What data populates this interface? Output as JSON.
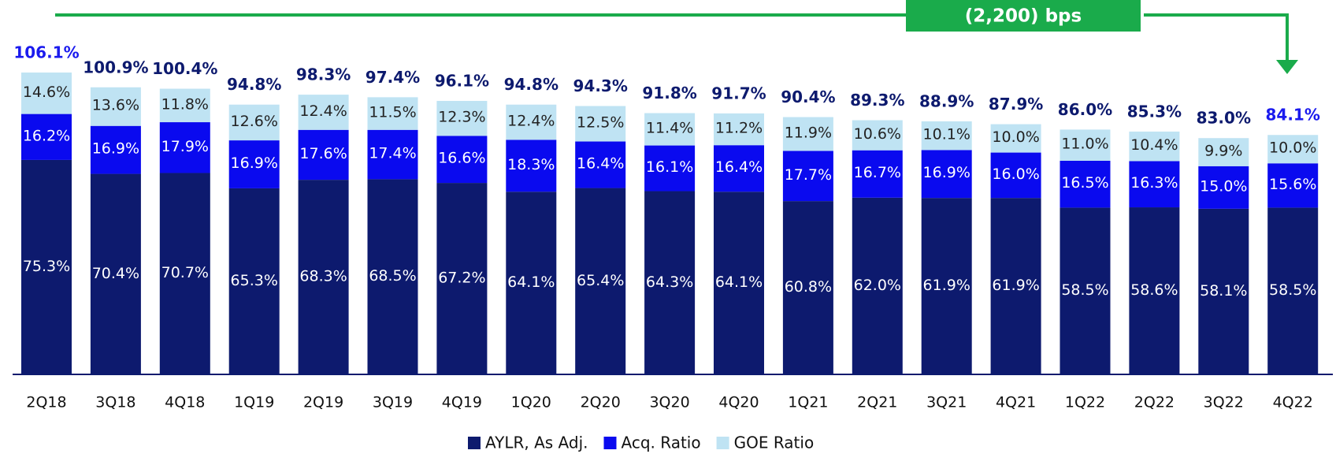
{
  "chart_data": {
    "type": "stacked-bar",
    "annotation": "(2,200) bps",
    "categories": [
      "2Q18",
      "3Q18",
      "4Q18",
      "1Q19",
      "2Q19",
      "3Q19",
      "4Q19",
      "1Q20",
      "2Q20",
      "3Q20",
      "4Q20",
      "1Q21",
      "2Q21",
      "3Q21",
      "4Q21",
      "1Q22",
      "2Q22",
      "3Q22",
      "4Q22"
    ],
    "series": [
      {
        "name": "AYLR, As Adj.",
        "color": "#0d1a6e",
        "label_color": "#ffffff",
        "values": [
          75.3,
          70.4,
          70.7,
          65.3,
          68.3,
          68.5,
          67.2,
          64.1,
          65.4,
          64.3,
          64.1,
          60.8,
          62.0,
          61.9,
          61.9,
          58.5,
          58.6,
          58.1,
          58.5
        ],
        "value_labels": [
          "75.3%",
          "70.4%",
          "70.7%",
          "65.3%",
          "68.3%",
          "68.5%",
          "67.2%",
          "64.1%",
          "65.4%",
          "64.3%",
          "64.1%",
          "60.8%",
          "62.0%",
          "61.9%",
          "61.9%",
          "58.5%",
          "58.6%",
          "58.1%",
          "58.5%"
        ]
      },
      {
        "name": "Acq. Ratio",
        "color": "#0a0aef",
        "label_color": "#ffffff",
        "values": [
          16.2,
          16.9,
          17.9,
          16.9,
          17.6,
          17.4,
          16.6,
          18.3,
          16.4,
          16.1,
          16.4,
          17.7,
          16.7,
          16.9,
          16.0,
          16.5,
          16.3,
          15.0,
          15.6
        ],
        "value_labels": [
          "16.2%",
          "16.9%",
          "17.9%",
          "16.9%",
          "17.6%",
          "17.4%",
          "16.6%",
          "18.3%",
          "16.4%",
          "16.1%",
          "16.4%",
          "17.7%",
          "16.7%",
          "16.9%",
          "16.0%",
          "16.5%",
          "16.3%",
          "15.0%",
          "15.6%"
        ]
      },
      {
        "name": "GOE Ratio",
        "color": "#bfe3f3",
        "label_color": "#222222",
        "values": [
          14.6,
          13.6,
          11.8,
          12.6,
          12.4,
          11.5,
          12.3,
          12.4,
          12.5,
          11.4,
          11.2,
          11.9,
          10.6,
          10.1,
          10.0,
          11.0,
          10.4,
          9.9,
          10.0
        ],
        "value_labels": [
          "14.6%",
          "13.6%",
          "11.8%",
          "12.6%",
          "12.4%",
          "11.5%",
          "12.3%",
          "12.4%",
          "12.5%",
          "11.4%",
          "11.2%",
          "11.9%",
          "10.6%",
          "10.1%",
          "10.0%",
          "11.0%",
          "10.4%",
          "9.9%",
          "10.0%"
        ]
      }
    ],
    "totals": [
      106.1,
      100.9,
      100.4,
      94.8,
      98.3,
      97.4,
      96.1,
      94.8,
      94.3,
      91.8,
      91.7,
      90.4,
      89.3,
      88.9,
      87.9,
      86.0,
      85.3,
      83.0,
      84.1
    ],
    "total_labels": [
      "106.1%",
      "100.9%",
      "100.4%",
      "94.8%",
      "98.3%",
      "97.4%",
      "96.1%",
      "94.8%",
      "94.3%",
      "91.8%",
      "91.7%",
      "90.4%",
      "89.3%",
      "88.9%",
      "87.9%",
      "86.0%",
      "85.3%",
      "83.0%",
      "84.1%"
    ],
    "total_colors": [
      "#1a1aee",
      "#0d1a6e",
      "#0d1a6e",
      "#0d1a6e",
      "#0d1a6e",
      "#0d1a6e",
      "#0d1a6e",
      "#0d1a6e",
      "#0d1a6e",
      "#0d1a6e",
      "#0d1a6e",
      "#0d1a6e",
      "#0d1a6e",
      "#0d1a6e",
      "#0d1a6e",
      "#0d1a6e",
      "#0d1a6e",
      "#0d1a6e",
      "#1a1aee"
    ],
    "annotation_color": "#1aab4b"
  }
}
